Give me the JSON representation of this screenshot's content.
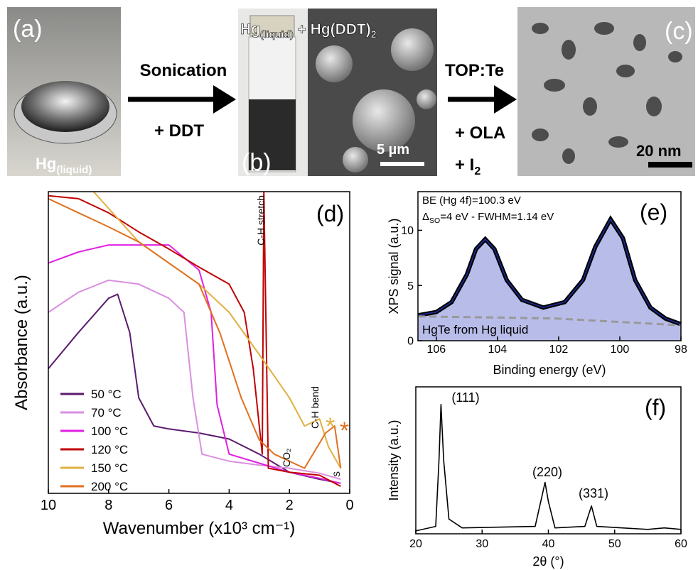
{
  "panels": {
    "a": {
      "label": "(a)",
      "caption": [
        "Hg",
        "(liquid)"
      ]
    },
    "step1": {
      "above": "Sonication",
      "below": "+ DDT"
    },
    "b": {
      "label": "(b)",
      "title": [
        "Hg",
        "(liquid)",
        " + Hg(DDT)",
        "2"
      ],
      "scale_bar": "5 µm"
    },
    "step2": {
      "above": "TOP:Te",
      "middle": "+ OLA",
      "below": [
        "+ I",
        "2"
      ]
    },
    "c": {
      "label": "(c)",
      "scale_bar": "20 nm"
    }
  },
  "chart_data": [
    {
      "type": "line",
      "panel_label": "(d)",
      "x_label": "Wavenumber (x10³ cm⁻¹)",
      "y_label": "Absorbance (a.u.)",
      "xlim": [
        10,
        0
      ],
      "ylim": [
        0,
        3
      ],
      "xticks": [
        10,
        8,
        6,
        4,
        2,
        0
      ],
      "annotations": [
        {
          "text": "C-H stretch"
        },
        {
          "text": "CO₂"
        },
        {
          "text": "C-H bend"
        },
        {
          "text": "*",
          "color": "#e0b040"
        },
        {
          "text": "*",
          "color": "#e07020"
        },
        {
          "text": "S"
        }
      ],
      "series": [
        {
          "name": "50 °C",
          "color": "#5a1a6e",
          "x": [
            10,
            9,
            8,
            7.7,
            7.3,
            7,
            6.5,
            6,
            5,
            4,
            3,
            2,
            1,
            0.3
          ],
          "values": [
            1.24,
            1.6,
            1.94,
            1.98,
            1.6,
            0.95,
            0.67,
            0.64,
            0.6,
            0.54,
            0.39,
            0.21,
            0.14,
            0.1
          ]
        },
        {
          "name": "70 °C",
          "color": "#d98fe0",
          "x": [
            10,
            9,
            8,
            7,
            6,
            5.5,
            5.2,
            4.9,
            4,
            3,
            2,
            1,
            0.3
          ],
          "values": [
            1.8,
            2.0,
            2.12,
            2.08,
            1.94,
            1.8,
            0.95,
            0.39,
            0.32,
            0.28,
            0.25,
            0.2,
            0.14
          ]
        },
        {
          "name": "100 °C",
          "color": "#e020e0",
          "x": [
            10,
            9,
            8,
            7,
            6,
            5,
            4.6,
            4.4,
            4,
            3,
            2,
            1,
            0.3
          ],
          "values": [
            2.29,
            2.4,
            2.47,
            2.47,
            2.47,
            2.22,
            1.8,
            0.88,
            0.39,
            0.3,
            0.21,
            0.15,
            0.1
          ]
        },
        {
          "name": "120 °C",
          "color": "#c00000",
          "x": [
            10,
            9,
            8,
            7,
            6,
            5,
            4,
            3.5,
            3.2,
            3,
            2.9,
            2.85,
            2.7,
            2,
            1,
            0.3
          ],
          "values": [
            2.96,
            2.93,
            2.79,
            2.6,
            2.43,
            2.25,
            2.08,
            1.8,
            1.24,
            0.67,
            0.39,
            3,
            0.25,
            0.21,
            0.18,
            0.07
          ]
        },
        {
          "name": "150 °C",
          "color": "#e0b040",
          "x": [
            8.5,
            7,
            6,
            5,
            4,
            3,
            2,
            1.5,
            1,
            0.7,
            0.3
          ],
          "values": [
            3,
            2.5,
            2.29,
            2.08,
            1.8,
            1.38,
            0.95,
            0.67,
            0.74,
            0.46,
            0.25
          ]
        },
        {
          "name": "200 °C",
          "color": "#e07020",
          "x": [
            10,
            9,
            8,
            7,
            6,
            5,
            4.3,
            3.6,
            3,
            2.5,
            1.5,
            0.8,
            0.5,
            0.3
          ],
          "values": [
            2.93,
            2.79,
            2.65,
            2.5,
            2.29,
            2.08,
            1.59,
            0.95,
            0.53,
            0.39,
            0.25,
            0.6,
            0.67,
            0.25
          ]
        }
      ]
    },
    {
      "type": "line",
      "panel_label": "(e)",
      "x_label": "Binding energy (eV)",
      "y_label": "XPS signal (a.u.)",
      "xlim": [
        106.6,
        98
      ],
      "ylim": [
        0,
        13.5
      ],
      "xticks": [
        106,
        104,
        102,
        100,
        98
      ],
      "yticks": [
        0,
        5,
        10
      ],
      "annotations": [
        {
          "text": "BE (Hg 4f)=100.3 eV"
        },
        {
          "text": [
            "Δ",
            "SO",
            "=4 eV  - FWHM=1.14 eV"
          ]
        },
        {
          "text": "HgTe from Hg liquid"
        }
      ],
      "series": [
        {
          "color": "#1f2d9c",
          "fill": "#b8bce8",
          "outline": "#000000",
          "x": [
            106.6,
            106,
            105.5,
            105,
            104.7,
            104.4,
            104.1,
            103.7,
            103.2,
            102.5,
            101.8,
            101.2,
            100.8,
            100.3,
            99.9,
            99.5,
            99,
            98.5,
            98
          ],
          "values": [
            2.3,
            2.6,
            3.5,
            6,
            8.3,
            9.2,
            8.3,
            5.5,
            3.7,
            3,
            3.5,
            5.5,
            8.5,
            11,
            9.3,
            5.5,
            3,
            2,
            1.5
          ]
        },
        {
          "color": "#999999",
          "dashed": true,
          "x": [
            106.6,
            104,
            102,
            100,
            98
          ],
          "values": [
            2.2,
            2.1,
            2.0,
            1.7,
            1.4
          ]
        }
      ]
    },
    {
      "type": "line",
      "panel_label": "(f)",
      "x_label": "2θ (°)",
      "y_label": "Intensity (a.u.)",
      "xlim": [
        20,
        60
      ],
      "ylim": [
        0,
        1
      ],
      "xticks": [
        20,
        30,
        40,
        50,
        60
      ],
      "annotations": [
        {
          "text": "(111)"
        },
        {
          "text": "(220)"
        },
        {
          "text": "(331)"
        }
      ],
      "series": [
        {
          "color": "#000000",
          "x": [
            20,
            23,
            23.5,
            23.8,
            24.2,
            25,
            27,
            38,
            39,
            39.5,
            40,
            41,
            45.5,
            46.5,
            47.3,
            55,
            57.5,
            60
          ],
          "values": [
            0.02,
            0.05,
            0.5,
            0.88,
            0.5,
            0.1,
            0.04,
            0.05,
            0.25,
            0.35,
            0.22,
            0.04,
            0.05,
            0.19,
            0.05,
            0.03,
            0.04,
            0.03
          ]
        }
      ]
    }
  ]
}
